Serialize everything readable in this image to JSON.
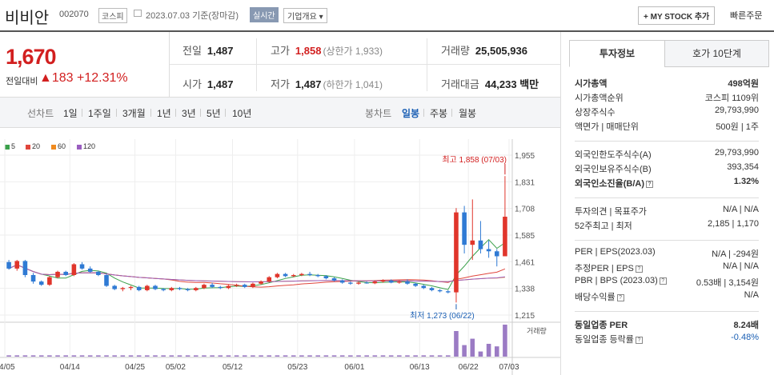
{
  "header": {
    "name": "비비안",
    "code": "002070",
    "market": "코스피",
    "date_text": "2023.07.03  기준(장마감)",
    "live": "실시간",
    "info_button": "기업개요 ▾",
    "mystock": "+ MY STOCK 추가",
    "quick_order": "빠른주문"
  },
  "price": {
    "current": "1,670",
    "change_label": "전일대비",
    "change_value": "▲183",
    "change_pct": "+12.31%"
  },
  "stats": {
    "prev_label": "전일",
    "prev": "1,487",
    "high_label": "고가",
    "high": "1,858",
    "high_sub": "(상한가 1,933)",
    "vol_label": "거래량",
    "vol": "25,505,936",
    "open_label": "시가",
    "open": "1,487",
    "low_label": "저가",
    "low": "1,487",
    "low_sub": "(하한가 1,041)",
    "amt_label": "거래대금",
    "amt": "44,233 백만"
  },
  "chart_tabs": {
    "line_group": "선차트",
    "line_items": [
      "1일",
      "1주일",
      "3개월",
      "1년",
      "3년",
      "5년",
      "10년"
    ],
    "candle_group": "봉차트",
    "candle_items": [
      "일봉",
      "주봉",
      "월봉"
    ]
  },
  "legend": [
    {
      "label": "5",
      "color": "#3aa04a"
    },
    {
      "label": "20",
      "color": "#e0463c"
    },
    {
      "label": "60",
      "color": "#f08a1e"
    },
    {
      "label": "120",
      "color": "#9a5ec0"
    }
  ],
  "chart_text": {
    "high_note": "최고 1,858 (07/03)",
    "low_note": "최저 1,273 (06/22)",
    "volume_label": "거래량",
    "y_ticks": [
      "1,955",
      "1,831",
      "1,708",
      "1,585",
      "1,461",
      "1,338",
      "1,215"
    ],
    "x_ticks": [
      "04/05",
      "04/14",
      "04/25",
      "05/02",
      "05/12",
      "05/23",
      "06/01",
      "06/13",
      "06/22",
      "07/03"
    ]
  },
  "chart_data": {
    "type": "candlestick",
    "y_range": [
      1215,
      1955
    ],
    "candles": [
      [
        1460,
        1470,
        1425,
        1430
      ],
      [
        1430,
        1470,
        1420,
        1465
      ],
      [
        1465,
        1470,
        1390,
        1400
      ],
      [
        1400,
        1410,
        1360,
        1370
      ],
      [
        1370,
        1375,
        1350,
        1355
      ],
      [
        1355,
        1395,
        1350,
        1390
      ],
      [
        1390,
        1420,
        1385,
        1415
      ],
      [
        1415,
        1420,
        1395,
        1400
      ],
      [
        1400,
        1455,
        1395,
        1450
      ],
      [
        1450,
        1460,
        1425,
        1430
      ],
      [
        1430,
        1440,
        1410,
        1415
      ],
      [
        1415,
        1420,
        1395,
        1400
      ],
      [
        1400,
        1405,
        1345,
        1350
      ],
      [
        1350,
        1355,
        1330,
        1335
      ],
      [
        1335,
        1345,
        1325,
        1340
      ],
      [
        1340,
        1350,
        1330,
        1345
      ],
      [
        1345,
        1350,
        1325,
        1330
      ],
      [
        1330,
        1355,
        1325,
        1350
      ],
      [
        1350,
        1355,
        1330,
        1335
      ],
      [
        1335,
        1340,
        1325,
        1330
      ],
      [
        1330,
        1345,
        1325,
        1340
      ],
      [
        1340,
        1345,
        1330,
        1335
      ],
      [
        1335,
        1340,
        1325,
        1330
      ],
      [
        1330,
        1345,
        1325,
        1340
      ],
      [
        1340,
        1360,
        1335,
        1355
      ],
      [
        1355,
        1365,
        1340,
        1345
      ],
      [
        1345,
        1350,
        1335,
        1340
      ],
      [
        1340,
        1355,
        1335,
        1350
      ],
      [
        1350,
        1360,
        1345,
        1355
      ],
      [
        1355,
        1360,
        1340,
        1345
      ],
      [
        1345,
        1365,
        1340,
        1360
      ],
      [
        1360,
        1375,
        1355,
        1370
      ],
      [
        1370,
        1395,
        1365,
        1390
      ],
      [
        1390,
        1410,
        1385,
        1405
      ],
      [
        1405,
        1410,
        1390,
        1395
      ],
      [
        1395,
        1405,
        1390,
        1400
      ],
      [
        1400,
        1410,
        1395,
        1405
      ],
      [
        1405,
        1415,
        1395,
        1400
      ],
      [
        1400,
        1405,
        1390,
        1395
      ],
      [
        1395,
        1400,
        1380,
        1385
      ],
      [
        1385,
        1390,
        1370,
        1375
      ],
      [
        1375,
        1380,
        1360,
        1365
      ],
      [
        1365,
        1370,
        1355,
        1360
      ],
      [
        1360,
        1370,
        1355,
        1365
      ],
      [
        1365,
        1370,
        1360,
        1362
      ],
      [
        1362,
        1375,
        1358,
        1370
      ],
      [
        1370,
        1380,
        1365,
        1375
      ],
      [
        1375,
        1380,
        1362,
        1365
      ],
      [
        1365,
        1375,
        1360,
        1370
      ],
      [
        1370,
        1380,
        1355,
        1360
      ],
      [
        1360,
        1365,
        1345,
        1350
      ],
      [
        1350,
        1355,
        1335,
        1340
      ],
      [
        1340,
        1345,
        1325,
        1330
      ],
      [
        1330,
        1335,
        1320,
        1325
      ],
      [
        1325,
        1330,
        1315,
        1320
      ],
      [
        1320,
        1710,
        1273,
        1690
      ],
      [
        1690,
        1720,
        1500,
        1540
      ],
      [
        1540,
        1750,
        1470,
        1560
      ],
      [
        1560,
        1650,
        1500,
        1520
      ],
      [
        1520,
        1560,
        1480,
        1510
      ],
      [
        1510,
        1520,
        1440,
        1487
      ],
      [
        1487,
        1858,
        1487,
        1670
      ]
    ],
    "volume": [
      1,
      1,
      1,
      1,
      1,
      1,
      1,
      1,
      1,
      1,
      1,
      1,
      1,
      1,
      1,
      1,
      1,
      1,
      1,
      1,
      1,
      1,
      1,
      1,
      1,
      1,
      1,
      1,
      1,
      1,
      1,
      1,
      1,
      1,
      1,
      1,
      1,
      1,
      1,
      1,
      1,
      1,
      1,
      1,
      1,
      1,
      1,
      1,
      1,
      1,
      1,
      1,
      1,
      1,
      1,
      20,
      9,
      14,
      4,
      10,
      8,
      25
    ]
  },
  "right": {
    "tab_invest": "투자정보",
    "tab_quote": "호가 10단계",
    "rows": [
      {
        "l": "시가총액",
        "v": "498억원",
        "bold": true
      },
      {
        "l": "시가총액순위",
        "v": "코스피  1109위"
      },
      {
        "l": "상장주식수",
        "v": "29,793,990"
      },
      {
        "l": "액면가 | 매매단위",
        "v": "500원 | 1주"
      },
      {
        "l": "외국인한도주식수(A)",
        "v": "29,793,990"
      },
      {
        "l": "외국인보유주식수(B)",
        "v": "393,354"
      },
      {
        "l": "외국인소진율(B/A)",
        "v": "1.32%",
        "bold": true
      },
      {
        "l": "투자의견 | 목표주가",
        "v": "N/A | N/A"
      },
      {
        "l": "52주최고 | 최저",
        "v": "2,185 | 1,170"
      },
      {
        "l": "PER | EPS(2023.03)",
        "v": "N/A | -294원"
      },
      {
        "l": "추정PER | EPS",
        "v": "N/A | N/A"
      },
      {
        "l": "PBR | BPS (2023.03)",
        "v": "0.53배 | 3,154원"
      },
      {
        "l": "배당수익률",
        "v": "N/A"
      },
      {
        "l": "동일업종 PER",
        "v": "8.24배",
        "bold": true
      },
      {
        "l": "동일업종 등락률",
        "v": "-0.48%"
      }
    ]
  }
}
